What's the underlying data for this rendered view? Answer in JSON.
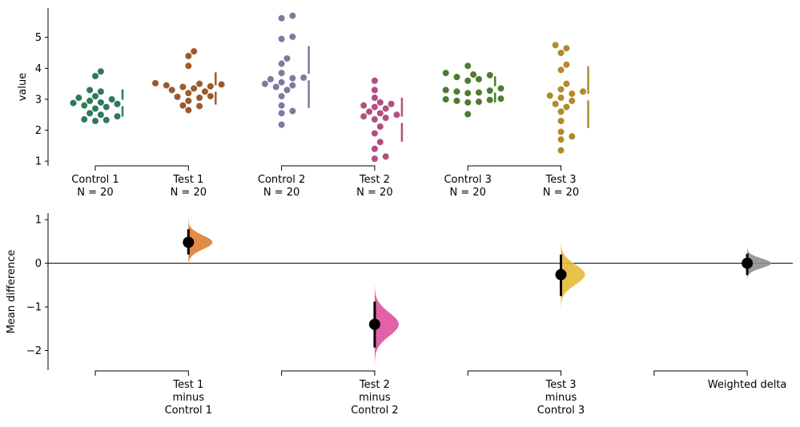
{
  "chart_data": [
    {
      "type": "scatter",
      "ylabel": "value",
      "ylim": [
        0.85,
        5.95
      ],
      "yticks": [
        1,
        2,
        3,
        4,
        5
      ],
      "groups": [
        {
          "name": "Control 1",
          "n_label": "N = 20",
          "color": "#2f7a5a",
          "values": [
            3.9,
            3.75,
            3.3,
            3.25,
            3.1,
            3.05,
            3.0,
            2.95,
            2.9,
            2.88,
            2.85,
            2.8,
            2.75,
            2.7,
            2.55,
            2.5,
            2.45,
            2.35,
            2.33,
            2.3
          ],
          "summary": {
            "mean": 2.88,
            "sd": 0.44
          }
        },
        {
          "name": "Test 1",
          "n_label": "N = 20",
          "color": "#9b5b2e",
          "values": [
            4.55,
            4.4,
            4.08,
            3.52,
            3.5,
            3.48,
            3.45,
            3.42,
            3.4,
            3.35,
            3.3,
            3.25,
            3.2,
            3.1,
            3.08,
            3.05,
            2.95,
            2.8,
            2.78,
            2.65
          ],
          "summary": {
            "mean": 3.35,
            "sd": 0.52
          }
        },
        {
          "name": "Control 2",
          "n_label": "N = 20",
          "color": "#7c7aa0",
          "values": [
            5.7,
            5.62,
            5.02,
            4.95,
            4.32,
            4.15,
            3.85,
            3.7,
            3.68,
            3.55,
            3.5,
            3.45,
            3.4,
            3.3,
            3.1,
            2.8,
            2.62,
            2.55,
            2.18,
            3.65
          ],
          "summary": {
            "mean": 3.72,
            "sd": 1.0
          }
        },
        {
          "name": "Test 2",
          "n_label": "N = 20",
          "color": "#b24f82",
          "values": [
            3.6,
            3.3,
            3.05,
            2.9,
            2.85,
            2.8,
            2.75,
            2.7,
            2.6,
            2.55,
            2.5,
            2.45,
            2.4,
            2.35,
            2.12,
            1.9,
            1.62,
            1.4,
            1.15,
            1.08
          ],
          "summary": {
            "mean": 2.34,
            "sd": 0.71
          }
        },
        {
          "name": "Control 3",
          "n_label": "N = 20",
          "color": "#4e7c32",
          "values": [
            4.08,
            3.85,
            3.8,
            3.78,
            3.72,
            3.65,
            3.6,
            3.35,
            3.3,
            3.28,
            3.25,
            3.22,
            3.2,
            3.02,
            3.0,
            2.98,
            2.95,
            2.92,
            2.9,
            2.52
          ],
          "summary": {
            "mean": 3.32,
            "sd": 0.42
          }
        },
        {
          "name": "Test 3",
          "n_label": "N = 20",
          "color": "#b28a2c",
          "values": [
            4.75,
            4.65,
            4.5,
            4.12,
            3.95,
            3.5,
            3.32,
            3.25,
            3.18,
            3.12,
            3.05,
            2.85,
            2.75,
            2.6,
            2.3,
            1.95,
            1.8,
            1.7,
            1.35,
            2.95
          ],
          "summary": {
            "mean": 3.07,
            "sd": 1.0
          }
        }
      ],
      "brackets": [
        [
          "Control 1",
          "Test 1"
        ],
        [
          "Control 2",
          "Test 2"
        ],
        [
          "Control 3",
          "Test 3"
        ]
      ]
    },
    {
      "type": "area",
      "ylabel": "Mean difference",
      "ylim": [
        -2.45,
        1.15
      ],
      "yticks": [
        -2,
        -1,
        0,
        1
      ],
      "zero_line": true,
      "deltas": [
        {
          "label_lines": [
            "Test 1",
            "minus",
            "Control 1"
          ],
          "position": 1,
          "color": "#e07d33",
          "mean": 0.48,
          "ci": [
            0.2,
            0.78
          ],
          "spread": 0.16
        },
        {
          "label_lines": [
            "Test 2",
            "minus",
            "Control 2"
          ],
          "position": 3,
          "color": "#e0509e",
          "mean": -1.4,
          "ci": [
            -1.93,
            -0.88
          ],
          "spread": 0.27
        },
        {
          "label_lines": [
            "Test 3",
            "minus",
            "Control 3"
          ],
          "position": 5,
          "color": "#e8b93a",
          "mean": -0.26,
          "ci": [
            -0.75,
            0.2
          ],
          "spread": 0.23
        },
        {
          "label_lines": [
            "Weighted delta"
          ],
          "position": 7,
          "color": "#8f8f8f",
          "mean": 0.0,
          "ci": [
            -0.27,
            0.22
          ],
          "spread": 0.11
        }
      ],
      "brackets": [
        [
          0,
          1
        ],
        [
          2,
          3
        ],
        [
          4,
          5
        ],
        [
          6,
          7
        ]
      ]
    }
  ]
}
